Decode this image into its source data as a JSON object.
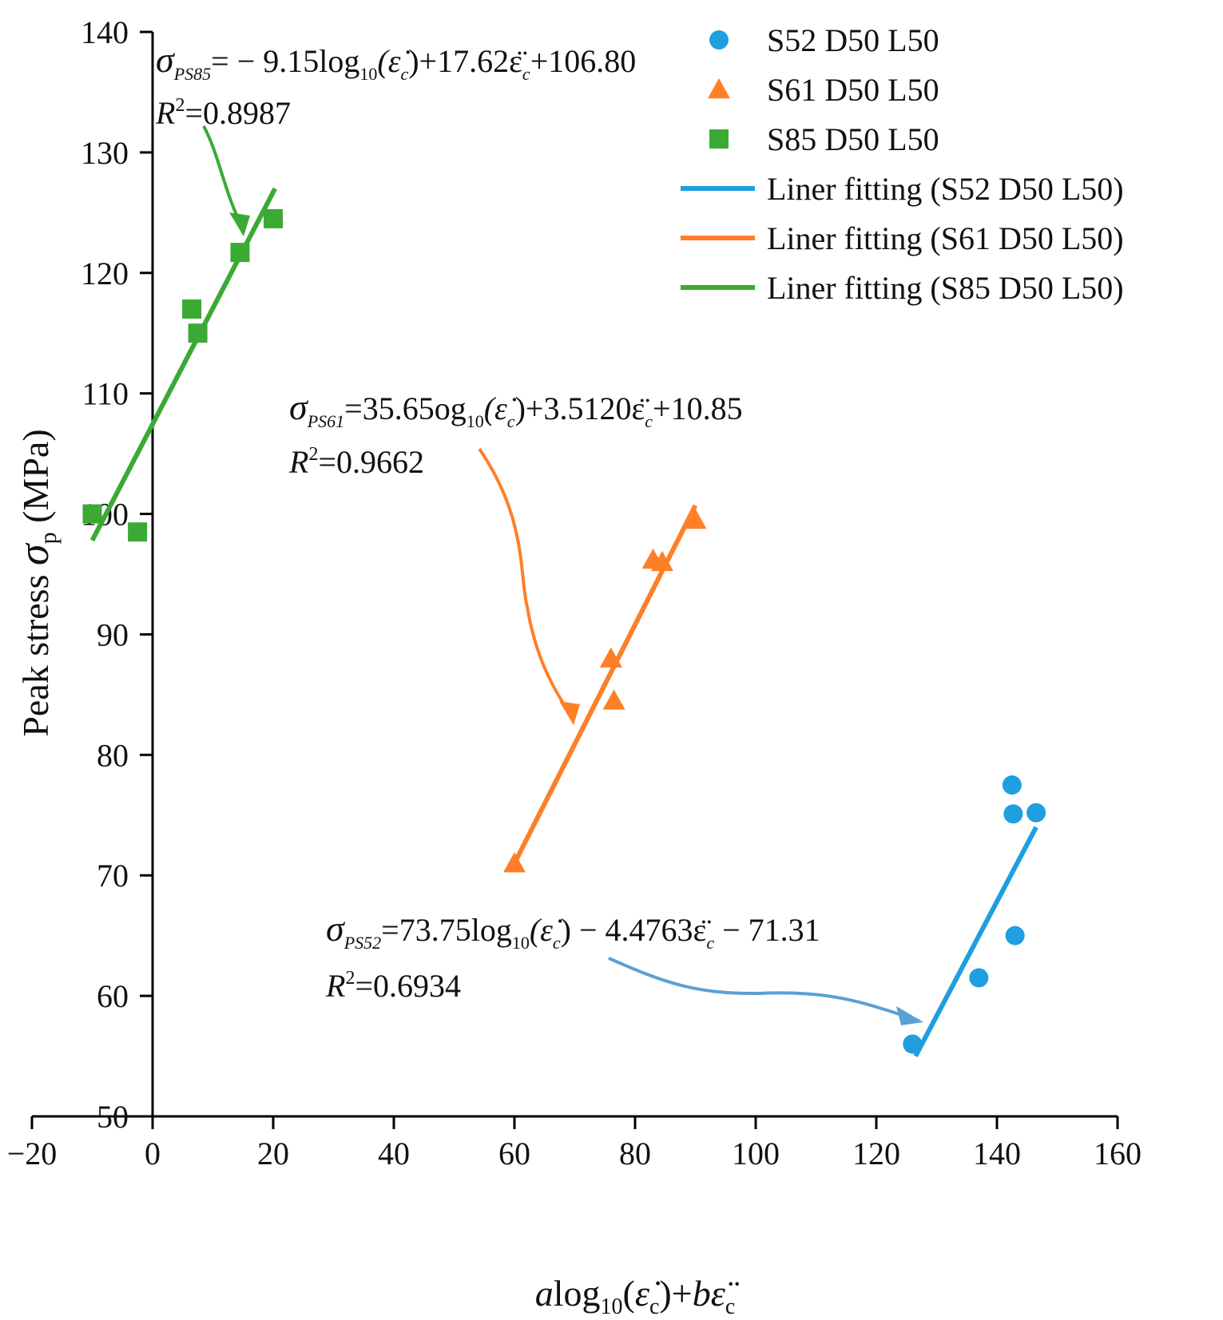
{
  "chart_data": {
    "type": "scatter",
    "xlim": [
      -20,
      160
    ],
    "ylim": [
      50,
      140
    ],
    "x_ticks": [
      -20,
      0,
      20,
      40,
      60,
      80,
      100,
      120,
      140,
      160
    ],
    "y_ticks": [
      50,
      60,
      70,
      80,
      90,
      100,
      110,
      120,
      130,
      140
    ],
    "x_tick_labels": [
      "−20",
      "0",
      "20",
      "40",
      "60",
      "80",
      "100",
      "120",
      "140",
      "160"
    ],
    "y_tick_labels": [
      "50",
      "60",
      "70",
      "80",
      "90",
      "100",
      "110",
      "120",
      "130",
      "140"
    ],
    "ylabel": {
      "prefix": "Peak stress ",
      "symbol": "σ",
      "sub": "p",
      "suffix": " (MPa)"
    },
    "xlabel": {
      "a": "a",
      "log": "log",
      "sub10": "10",
      "open": "(",
      "edot": "ε̇",
      "subc1": "c",
      "mid": ")+",
      "b": "b",
      "eddot": "ε̈",
      "subc2": "c"
    },
    "series": [
      {
        "name": "S52 D50 L50",
        "marker": "circle",
        "color": "#1f9ee0",
        "points": [
          [
            126,
            56
          ],
          [
            137,
            61.5
          ],
          [
            142.5,
            77.5
          ],
          [
            142.7,
            75.1
          ],
          [
            143,
            65
          ],
          [
            146.5,
            75.2
          ]
        ]
      },
      {
        "name": "S61 D50 L50",
        "marker": "triangle",
        "color": "#ff7f27",
        "points": [
          [
            60,
            71
          ],
          [
            76,
            88
          ],
          [
            76.5,
            84.5
          ],
          [
            83,
            96.2
          ],
          [
            84.5,
            96
          ],
          [
            90,
            99.5
          ]
        ]
      },
      {
        "name": "S85 D50 L50",
        "marker": "square",
        "color": "#3aaa35",
        "points": [
          [
            -10,
            100
          ],
          [
            -2.5,
            98.5
          ],
          [
            6.5,
            117
          ],
          [
            7.5,
            115
          ],
          [
            14.5,
            121.7
          ],
          [
            20,
            124.5
          ]
        ]
      }
    ],
    "fits": [
      {
        "name": "Liner fitting (S52 D50 L50)",
        "color": "#1f9ee0",
        "from": [
          126.5,
          55
        ],
        "to": [
          146.5,
          74
        ]
      },
      {
        "name": "Liner fitting (S61 D50 L50)",
        "color": "#ff7f27",
        "from": [
          60,
          71
        ],
        "to": [
          90,
          100.7
        ]
      },
      {
        "name": "Liner fitting (S85 D50 L50)",
        "color": "#3aaa35",
        "from": [
          -10,
          97.8
        ],
        "to": [
          20.3,
          127
        ]
      }
    ],
    "annotations": [
      {
        "series": "S85 D50 L50",
        "sym": "σ",
        "sub": "PS85",
        "rhs": "= − 9.15log",
        "sub10": "10",
        "arg": "(ε̇",
        "argsub": "c",
        "tail": ")+17.62ε̈",
        "tailsub": "c",
        "end": "+106.80",
        "r2_label": "R",
        "r2_sup": "2",
        "r2_value": "=0.8987",
        "arrow_color": "#3aaa35",
        "target": [
          15,
          123
        ]
      },
      {
        "series": "S61 D50 L50",
        "sym": "σ",
        "sub": "PS61",
        "rhs": "=35.65og",
        "sub10": "10",
        "arg": "(ε̇",
        "argsub": "c",
        "tail": ")+3.5120ε̈",
        "tailsub": "c",
        "end": "+10.85",
        "r2_label": "R",
        "r2_sup": "2",
        "r2_value": "=0.9662",
        "arrow_color": "#ff7f27",
        "target": [
          71,
          82
        ]
      },
      {
        "series": "S52 D50 L50",
        "sym": "σ",
        "sub": "PS52",
        "rhs": "=73.75log",
        "sub10": "10",
        "arg": "(ε̇",
        "argsub": "c",
        "tail": ") − 4.4763ε̈",
        "tailsub": "c",
        "end": " − 71.31",
        "r2_label": "R",
        "r2_sup": "2",
        "r2_value": "=0.6934",
        "arrow_color": "#5aa0d5",
        "target": [
          129.5,
          57.5
        ]
      }
    ],
    "legend": {
      "position": "top-right",
      "entries": [
        {
          "label": "S52 D50 L50",
          "kind": "circle",
          "color": "#1f9ee0"
        },
        {
          "label": "S61 D50 L50",
          "kind": "triangle",
          "color": "#ff7f27"
        },
        {
          "label": "S85 D50 L50",
          "kind": "square",
          "color": "#3aaa35"
        },
        {
          "label": "Liner fitting (S52 D50 L50)",
          "kind": "line",
          "color": "#1f9ee0"
        },
        {
          "label": "Liner fitting (S61 D50 L50)",
          "kind": "line",
          "color": "#ff7f27"
        },
        {
          "label": "Liner fitting (S85 D50 L50)",
          "kind": "line",
          "color": "#3aaa35"
        }
      ]
    }
  }
}
